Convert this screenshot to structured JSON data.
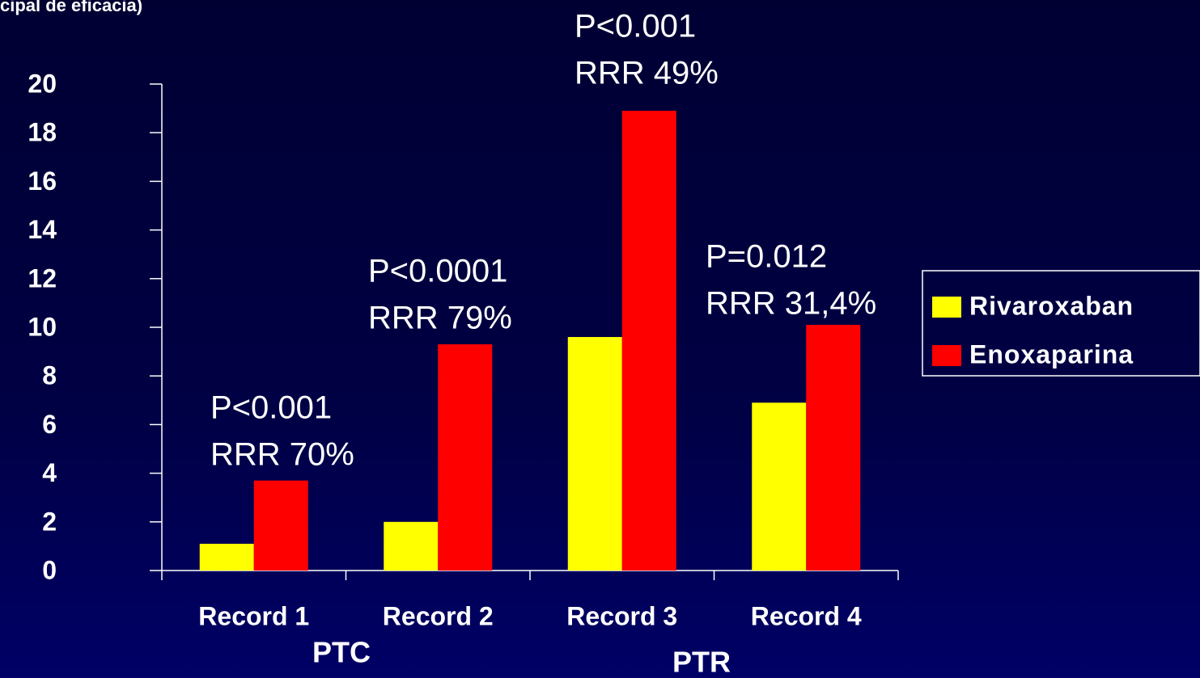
{
  "chart_data": {
    "type": "bar",
    "subtitle": "cipal de eficacia)",
    "categories": [
      "Record 1",
      "Record 2",
      "Record 3",
      "Record 4"
    ],
    "series": [
      {
        "name": "Rivaroxaban",
        "color": "#ffff00",
        "values": [
          1.1,
          2.0,
          9.6,
          6.9
        ]
      },
      {
        "name": "Enoxaparina",
        "color": "#ff0000",
        "values": [
          3.7,
          9.3,
          18.9,
          10.1
        ]
      }
    ],
    "annotations": [
      [
        "P<0.001",
        "RRR 70%"
      ],
      [
        "P<0.0001",
        "RRR 79%"
      ],
      [
        "P<0.001",
        "RRR 49%"
      ],
      [
        "P=0.012",
        "RRR 31,4%"
      ]
    ],
    "group_labels": [
      "PTC",
      "PTR"
    ],
    "ylim": [
      0,
      20
    ],
    "yticks": [
      0,
      2,
      4,
      6,
      8,
      10,
      12,
      14,
      16,
      18,
      20
    ],
    "grid": false,
    "legend": "right"
  }
}
